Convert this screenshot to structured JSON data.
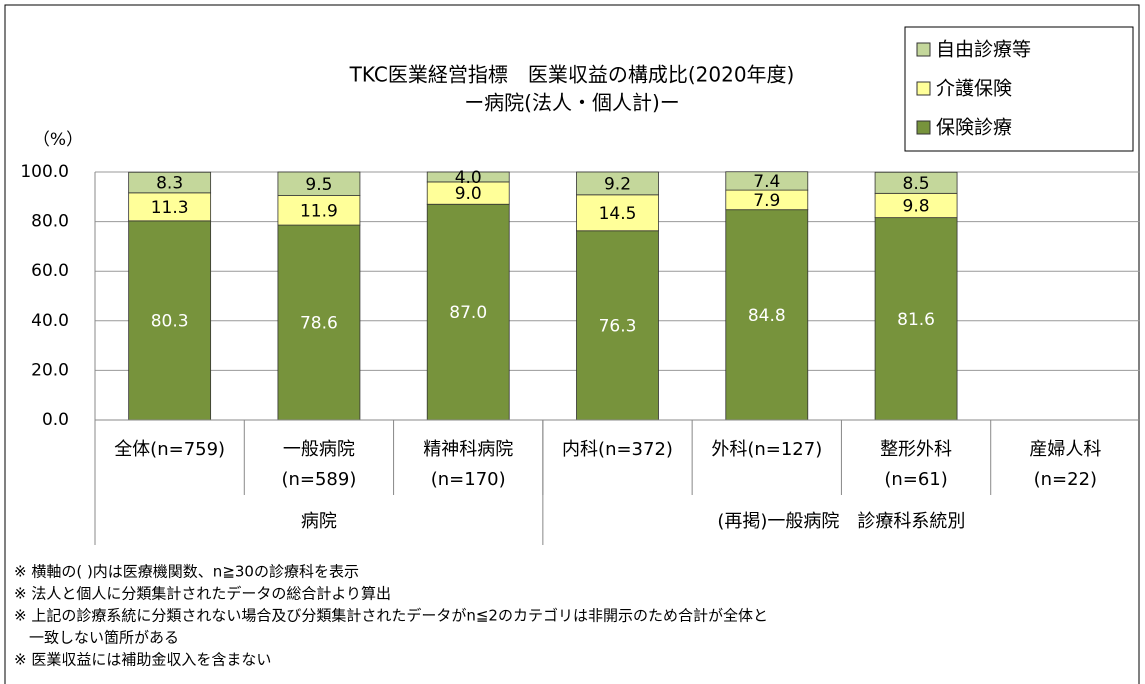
{
  "chart_data": {
    "type": "stacked_bar",
    "title": [
      "TKC医業経営指標　医業収益の構成比(2020年度)",
      "ー病院(法人・個人計)ー"
    ],
    "y_label": "（%）",
    "categories": [
      [
        "全体(n=759)"
      ],
      [
        "一般病院",
        "(n=589)"
      ],
      [
        "精神科病院",
        "(n=170)"
      ],
      [
        "内科(n=372)"
      ],
      [
        "外科(n=127)"
      ],
      [
        "整形外科",
        "(n=61)"
      ],
      [
        "産婦人科",
        "(n=22)"
      ]
    ],
    "groups": [
      {
        "name": "病院",
        "count": 3
      },
      {
        "name": "(再掲)一般病院　診療科系統別",
        "count": 4
      }
    ],
    "series": [
      {
        "name": "保険診療",
        "color": "#77933c",
        "label_color": "#ffffff",
        "values": [
          80.3,
          78.6,
          87.0,
          76.3,
          84.8,
          81.6,
          null
        ],
        "value_labels": [
          "80.3",
          "78.6",
          "87.0",
          "76.3",
          "84.8",
          "81.6",
          null
        ]
      },
      {
        "name": "介護保険",
        "color": "#ffff99",
        "label_color": "#000000",
        "values": [
          11.3,
          11.9,
          9.0,
          14.5,
          7.9,
          9.8,
          null
        ],
        "value_labels": [
          "11.3",
          "11.9",
          "9.0",
          "14.5",
          "7.9",
          "9.8",
          null
        ]
      },
      {
        "name": "自由診療等",
        "color": "#c4d79b",
        "label_color": "#000000",
        "values": [
          8.3,
          9.5,
          4.0,
          9.2,
          7.4,
          8.5,
          null
        ],
        "value_labels": [
          "8.3",
          "9.5",
          "4.0",
          "9.2",
          "7.4",
          "8.5",
          null
        ]
      }
    ],
    "ylim": [
      0,
      100
    ],
    "yticks": [
      {
        "value": 0,
        "label": "0.0"
      },
      {
        "value": 20,
        "label": "20.0"
      },
      {
        "value": 40,
        "label": "40.0"
      },
      {
        "value": 60,
        "label": "60.0"
      },
      {
        "value": 80,
        "label": "80.0"
      },
      {
        "value": 100,
        "label": "100.0"
      }
    ],
    "grid": true,
    "legend": "top-right",
    "notes": [
      [
        "※ 横軸の( )内は医療機関数、n≧30の診療科を表示"
      ],
      [
        "※ 法人と個人に分類集計されたデータの総合計より算出"
      ],
      [
        "※ 上記の診療系統に分類されない場合及び分類集計されたデータがn≦2のカテゴリは非開示のため合計が全体と",
        "　一致しない箇所がある"
      ],
      [
        "※ 医業収益には補助金収入を含まない"
      ]
    ]
  }
}
